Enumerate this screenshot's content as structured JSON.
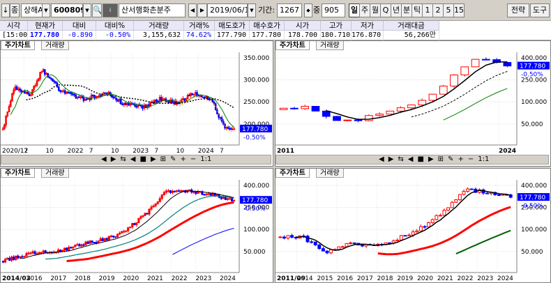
{
  "toolbar": {
    "btn_down": "↓",
    "btn_jong": "종",
    "market": "상해A",
    "code": "600809",
    "search_icon": "search-icon",
    "name": "산서행화촌분주",
    "date": "2019/06/11",
    "period_label": "기간:",
    "period_value": "1267",
    "zoom_label": "중",
    "zoom_value": "905",
    "intervals": [
      "일",
      "주",
      "월",
      "Q",
      "년",
      "분",
      "틱",
      "1",
      "2",
      "5",
      "15"
    ],
    "strategy": "전략",
    "tools": "도구"
  },
  "quote": {
    "headers": [
      "시각",
      "현재가",
      "대비",
      "대비%",
      "거래량",
      "거래%",
      "매도호가",
      "매수호가",
      "시가",
      "고가",
      "저가",
      "거래대금"
    ],
    "values": [
      "[15:00]",
      "177.780",
      "-0.890",
      "-0.50%",
      "3,155,632",
      "74.62%",
      "177.790",
      "177.780",
      "178.700",
      "180.710",
      "176.870",
      "56,266만"
    ]
  },
  "colors": {
    "up": "#ff0000",
    "down": "#0000ff",
    "ma_black": "#000000",
    "ma_green": "#008000",
    "ma_orange": "#ff8000",
    "price_tag": "#0000ff"
  },
  "panels": [
    {
      "tab_chart": "주가차트",
      "tab_volume": "거래량",
      "price_tag": "177.780",
      "change_pct": "-0.50%",
      "y_labels": [
        "350.000",
        "300.000",
        "250.000",
        "200.000"
      ],
      "x_labels": [
        "2020/12",
        "7",
        "10",
        "2022",
        "7",
        "10",
        "2023",
        "7",
        "10",
        "2024",
        "7"
      ]
    },
    {
      "tab_chart": "주가차트",
      "tab_volume": "거래량",
      "price_tag": "177.780",
      "change_pct": "-0.50%",
      "y_labels": [
        "400.000",
        "250.000",
        "100.000",
        "50.000"
      ],
      "x_labels": [
        "2011",
        "2024"
      ]
    },
    {
      "tab_chart": "주가차트",
      "tab_volume": "거래량",
      "price_tag": "177.780",
      "change_pct": "-0.50%",
      "y_labels": [
        "400.000",
        "250.000",
        "100.000",
        "50.000"
      ],
      "x_labels": [
        "2014/03",
        "2016",
        "2017",
        "2018",
        "2019",
        "2020",
        "2021",
        "2022",
        "2023",
        "2024"
      ]
    },
    {
      "tab_chart": "주가차트",
      "tab_volume": "거래량",
      "price_tag": "177.780",
      "change_pct": "-0.50%",
      "y_labels": [
        "400.000",
        "250.000",
        "100.000",
        "50.000"
      ],
      "x_labels": [
        "2011/09",
        "2014",
        "2015",
        "2016",
        "2017",
        "2018",
        "2019",
        "2020",
        "2021",
        "2022",
        "2023",
        "2024"
      ]
    }
  ],
  "scroll_controls": {
    "ratio": "1:1"
  }
}
